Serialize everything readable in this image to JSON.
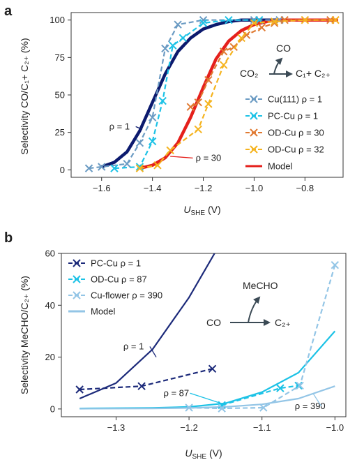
{
  "chart_data": [
    {
      "type": "line",
      "panel_label": "a",
      "xlabel_main": "U",
      "xlabel_sub": "SHE",
      "xlabel_unit": " (V)",
      "ylabel": "Selectivity CO/C₁+ C₂₊ (%)",
      "xlim": [
        -1.72,
        -0.65
      ],
      "ylim": [
        -5,
        105
      ],
      "xticks": [
        -1.6,
        -1.4,
        -1.2,
        -1.0,
        -0.8
      ],
      "xtick_labels": [
        "−1.6",
        "−1.4",
        "−1.2",
        "−1.0",
        "−0.8"
      ],
      "yticks": [
        0,
        25,
        50,
        75,
        100
      ],
      "ytick_labels": [
        "0",
        "25",
        "50",
        "75",
        "100"
      ],
      "grid": false,
      "legend_position": "bottom-right",
      "series": [
        {
          "name": "Cu(111) ρ = 1",
          "color": "#6b9bc3",
          "style": "dashed-marker",
          "x": [
            -1.65,
            -1.6,
            -1.5,
            -1.45,
            -1.4,
            -1.35,
            -1.3,
            -1.2,
            -1.0,
            -0.9
          ],
          "y": [
            1,
            2,
            4,
            18,
            35,
            81,
            97,
            100,
            100,
            100
          ]
        },
        {
          "name": "PC-Cu ρ = 1",
          "color": "#1cc2e6",
          "style": "dashed-marker",
          "x": [
            -1.55,
            -1.45,
            -1.4,
            -1.36,
            -1.32,
            -1.28,
            -1.2,
            -1.1,
            -0.98
          ],
          "y": [
            1,
            2,
            19,
            46,
            83,
            88,
            98,
            100,
            100
          ]
        },
        {
          "name": "OD-Cu ρ = 30",
          "color": "#e07a32",
          "style": "dashed-marker",
          "x": [
            -1.25,
            -1.22,
            -1.18,
            -1.12,
            -1.08,
            -1.03,
            -0.97,
            -0.92,
            -0.88,
            -0.8,
            -0.7
          ],
          "y": [
            42,
            45,
            60,
            79,
            82,
            90,
            95,
            98,
            100,
            100,
            100
          ]
        },
        {
          "name": "OD-Cu ρ = 32",
          "color": "#f5b31e",
          "style": "dashed-marker",
          "x": [
            -1.45,
            -1.38,
            -1.33,
            -1.22,
            -1.18,
            -1.12,
            -1.05,
            -1.0,
            -0.92,
            -0.8,
            -0.68
          ],
          "y": [
            1,
            3,
            13,
            27,
            44,
            70,
            88,
            98,
            99,
            100,
            100
          ]
        },
        {
          "name": "",
          "color": "#0c1a6e",
          "style": "solid",
          "x": [
            -1.6,
            -1.55,
            -1.5,
            -1.45,
            -1.4,
            -1.35,
            -1.3,
            -1.25,
            -1.2,
            -1.15,
            -1.1,
            -1.05,
            -1.0,
            -0.9
          ],
          "y": [
            2,
            5,
            12,
            26,
            45,
            64,
            79,
            88,
            94,
            97,
            99,
            100,
            100,
            100
          ]
        },
        {
          "name": "Model",
          "color": "#e5201c",
          "style": "solid",
          "x": [
            -1.45,
            -1.4,
            -1.35,
            -1.3,
            -1.25,
            -1.2,
            -1.15,
            -1.1,
            -1.05,
            -1.0,
            -0.95,
            -0.9,
            -0.8,
            -0.67
          ],
          "y": [
            1,
            3,
            8,
            18,
            35,
            55,
            74,
            86,
            93,
            97,
            99,
            100,
            100,
            100
          ]
        }
      ],
      "annotations": [
        {
          "text": "ρ = 1",
          "color": "#0c1a6e",
          "x": -1.57,
          "y": 27,
          "arrow_to": [
            -1.44,
            27
          ]
        },
        {
          "text": "ρ = 30",
          "color": "#e5201c",
          "x": -1.23,
          "y": 6,
          "arrow_to": [
            -1.33,
            9
          ]
        }
      ],
      "scheme": {
        "co2": "CO₂",
        "co": "CO",
        "products": "C₁+ C₂₊"
      }
    },
    {
      "type": "line",
      "panel_label": "b",
      "xlabel_main": "U",
      "xlabel_sub": "SHE",
      "xlabel_unit": " (V)",
      "ylabel": "Selectivity MeCHO/C₂₊ (%)",
      "xlim": [
        -1.375,
        -0.985
      ],
      "ylim": [
        -3,
        60
      ],
      "xticks": [
        -1.3,
        -1.2,
        -1.1,
        -1.0
      ],
      "xtick_labels": [
        "−1.3",
        "−1.2",
        "−1.1",
        "−1.0"
      ],
      "yticks": [
        0,
        20,
        40,
        60
      ],
      "ytick_labels": [
        "0",
        "20",
        "40",
        "60"
      ],
      "grid": false,
      "legend_position": "top-left",
      "series": [
        {
          "name": "PC-Cu ρ = 1",
          "color": "#1c2a7a",
          "style": "dashed-marker",
          "x": [
            -1.35,
            -1.265,
            -1.168
          ],
          "y": [
            7.5,
            8.8,
            15.5
          ]
        },
        {
          "name": "OD-Cu ρ = 87",
          "color": "#1cc2e6",
          "style": "dashed-marker",
          "x": [
            -1.155,
            -1.075,
            -1.05
          ],
          "y": [
            1.5,
            8.0,
            9.0
          ]
        },
        {
          "name": "Cu-flower ρ = 390",
          "color": "#93c5e6",
          "style": "dashed-marker",
          "x": [
            -1.2,
            -1.155,
            -1.098,
            -1.048,
            -1.0
          ],
          "y": [
            0.5,
            0.2,
            0.5,
            9,
            55.5
          ]
        },
        {
          "name": "",
          "color": "#1c2a7a",
          "style": "solid",
          "x": [
            -1.35,
            -1.3,
            -1.25,
            -1.2,
            -1.165
          ],
          "y": [
            4,
            10,
            23,
            43,
            60
          ]
        },
        {
          "name": "",
          "color": "#1cc2e6",
          "style": "solid",
          "x": [
            -1.35,
            -1.25,
            -1.2,
            -1.15,
            -1.1,
            -1.05,
            -1.0
          ],
          "y": [
            0.2,
            0.4,
            0.8,
            2.2,
            6.5,
            14,
            30
          ]
        },
        {
          "name": "Model",
          "color": "#93c5e6",
          "style": "solid",
          "x": [
            -1.35,
            -1.25,
            -1.2,
            -1.15,
            -1.1,
            -1.05,
            -1.0
          ],
          "y": [
            0.1,
            0.2,
            0.4,
            0.8,
            1.8,
            4,
            8.8
          ]
        }
      ],
      "annotations": [
        {
          "text": "ρ = 1",
          "color": "#1c2a7a",
          "x": -1.29,
          "y": 23,
          "arrow_to": [
            -1.245,
            20
          ]
        },
        {
          "text": "ρ = 87",
          "color": "#1cc2e6",
          "x": -1.235,
          "y": 5,
          "arrow_to": [
            -1.15,
            1.6
          ]
        },
        {
          "text": "ρ = 390",
          "color": "#93c5e6",
          "x": -1.055,
          "y": 0,
          "arrow_to": [
            -1.03,
            6
          ]
        }
      ],
      "scheme": {
        "co": "CO",
        "mecho": "MeCHO",
        "products": "C₂₊"
      }
    }
  ]
}
